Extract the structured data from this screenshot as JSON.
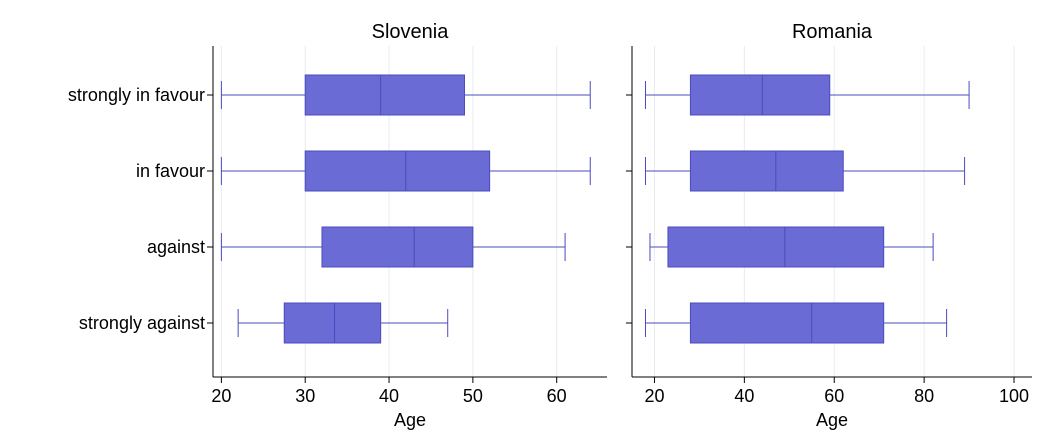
{
  "chart_data": {
    "type": "boxplot",
    "orientation": "horizontal",
    "categories": [
      "strongly in favour",
      "in favour",
      "against",
      "strongly against"
    ],
    "box_color": "#6b6bd6",
    "box_edge_color": "#4b4bbf",
    "panels": [
      {
        "title": "Slovenia",
        "xlabel": "Age",
        "xlim": [
          19,
          66
        ],
        "xticks": [
          20,
          30,
          40,
          50,
          60
        ],
        "boxes": [
          {
            "category": "strongly in favour",
            "min": 20,
            "q1": 30,
            "median": 39,
            "q3": 49,
            "max": 64
          },
          {
            "category": "in favour",
            "min": 20,
            "q1": 30,
            "median": 42,
            "q3": 52,
            "max": 64
          },
          {
            "category": "against",
            "min": 20,
            "q1": 32,
            "median": 43,
            "q3": 50,
            "max": 61
          },
          {
            "category": "strongly against",
            "min": 22,
            "q1": 27.5,
            "median": 33.5,
            "q3": 39,
            "max": 47
          }
        ]
      },
      {
        "title": "Romania",
        "xlabel": "Age",
        "xlim": [
          15,
          104
        ],
        "xticks": [
          20,
          40,
          60,
          80,
          100
        ],
        "boxes": [
          {
            "category": "strongly in favour",
            "min": 18,
            "q1": 28,
            "median": 44,
            "q3": 59,
            "max": 90
          },
          {
            "category": "in favour",
            "min": 18,
            "q1": 28,
            "median": 47,
            "q3": 62,
            "max": 89
          },
          {
            "category": "against",
            "min": 19,
            "q1": 23,
            "median": 49,
            "q3": 71,
            "max": 82
          },
          {
            "category": "strongly against",
            "min": 18,
            "q1": 28,
            "median": 55,
            "q3": 71,
            "max": 85
          }
        ]
      }
    ]
  }
}
